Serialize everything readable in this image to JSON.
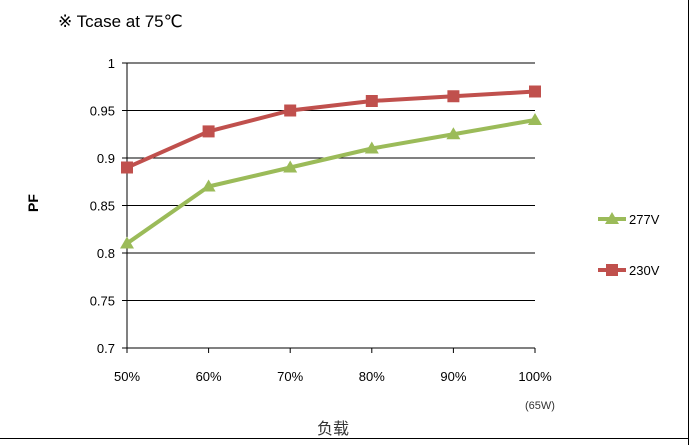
{
  "chart_data": {
    "type": "line",
    "title": "※ Tcase at 75℃",
    "xlabel": "负载",
    "ylabel": "PF",
    "categories": [
      "50%",
      "60%",
      "70%",
      "80%",
      "90%",
      "100%"
    ],
    "x_sublabel": "(65W)",
    "y_ticks": [
      "0.7",
      "0.75",
      "0.8",
      "0.85",
      "0.9",
      "0.95",
      "1"
    ],
    "ylim": [
      0.7,
      1.0
    ],
    "grid": true,
    "legend_position": "right",
    "series": [
      {
        "name": "277V",
        "color": "#9BBB59",
        "marker": "triangle",
        "values": [
          0.81,
          0.87,
          0.89,
          0.91,
          0.925,
          0.94
        ]
      },
      {
        "name": "230V",
        "color": "#C0504D",
        "marker": "square",
        "values": [
          0.89,
          0.928,
          0.95,
          0.96,
          0.965,
          0.97
        ]
      }
    ]
  }
}
